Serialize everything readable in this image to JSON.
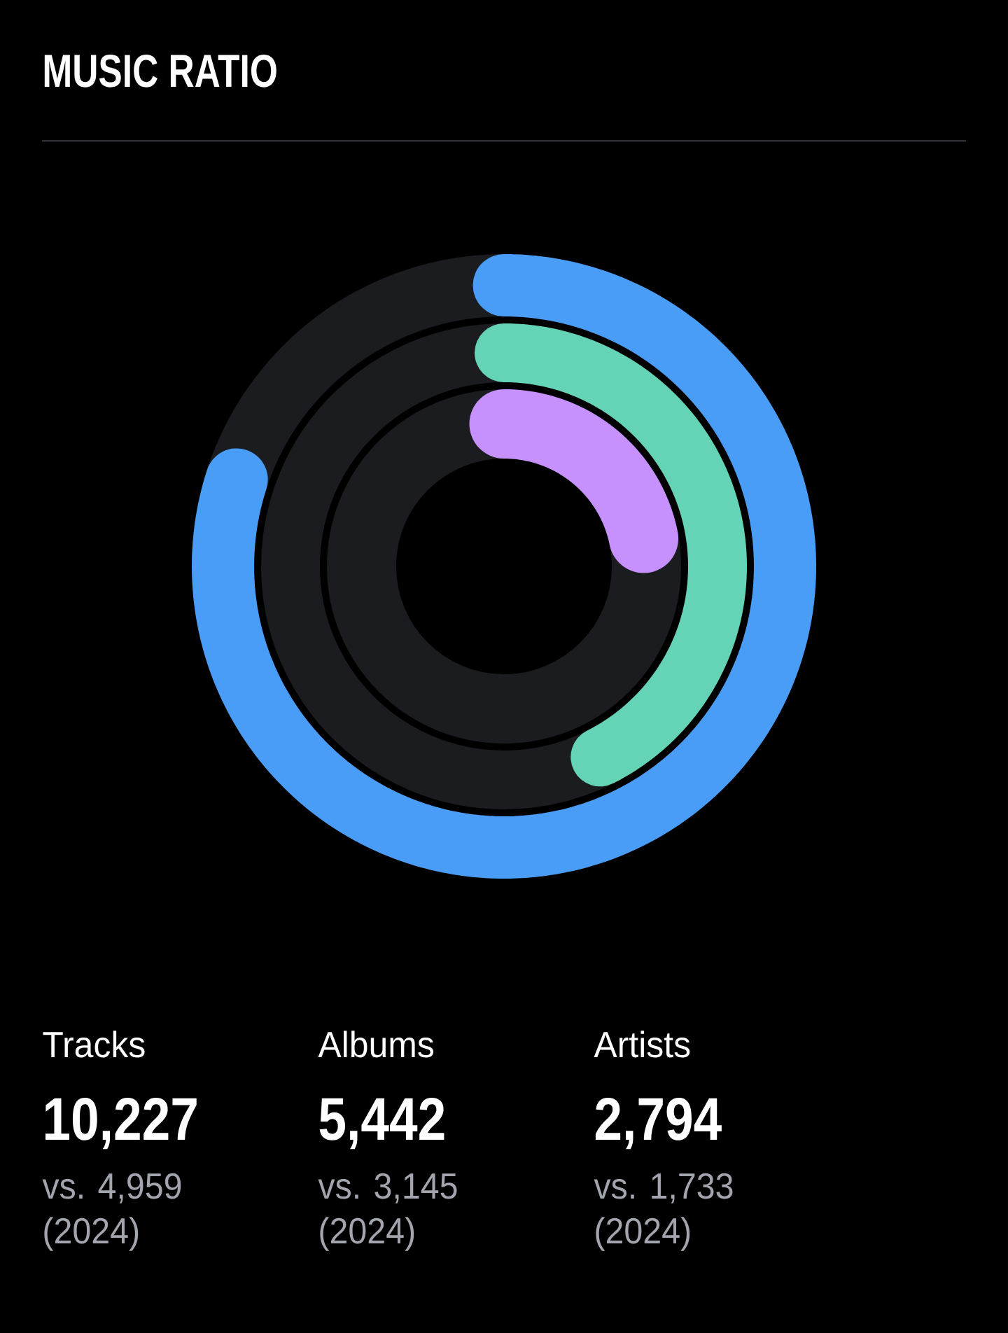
{
  "chart_data": {
    "type": "other",
    "title": "MUSIC RATIO",
    "categories": [
      "Tracks",
      "Albums",
      "Artists"
    ],
    "values": [
      10227,
      5442,
      2794
    ],
    "value_labels": [
      "10,227",
      "5,442",
      "2,794"
    ],
    "colors": [
      "#4a9df6",
      "#64d3b6",
      "#c690fd"
    ],
    "annotations": [
      "vs. 4,959 (2024)",
      "vs. 3,145 (2024)",
      "vs. 1,733 (2024)"
    ]
  }
}
